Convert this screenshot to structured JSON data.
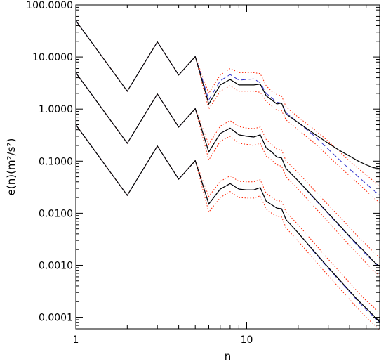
{
  "chart_data": {
    "type": "line",
    "xlabel": "n",
    "ylabel": "e(n)(m²/s²)",
    "xscale": "log",
    "yscale": "log",
    "xlim": [
      1,
      60
    ],
    "ylim": [
      6e-05,
      100
    ],
    "x_ticks": [
      {
        "value": 1,
        "label": "1"
      },
      {
        "value": 10,
        "label": "10"
      }
    ],
    "y_ticks": [
      {
        "value": 100,
        "label": "100.0000"
      },
      {
        "value": 10,
        "label": "10.0000"
      },
      {
        "value": 1,
        "label": "1.0000"
      },
      {
        "value": 0.1,
        "label": "0.1000"
      },
      {
        "value": 0.01,
        "label": "0.0100"
      },
      {
        "value": 0.001,
        "label": "0.0010"
      },
      {
        "value": 0.0001,
        "label": "0.0001"
      }
    ],
    "grid": false,
    "legend": "none",
    "colors": {
      "solid": "#000000",
      "dashed": "#3333cc",
      "dotted": "#ff2200"
    },
    "groups": [
      {
        "solid": [
          [
            1,
            50
          ],
          [
            2,
            2.2
          ],
          [
            3,
            19.5
          ],
          [
            4,
            4.5
          ],
          [
            5,
            10.2
          ],
          [
            6,
            1.25
          ],
          [
            7,
            2.9
          ],
          [
            8,
            3.7
          ],
          [
            9,
            2.9
          ],
          [
            10,
            2.9
          ],
          [
            11,
            2.9
          ],
          [
            12,
            3.0
          ],
          [
            13,
            1.8
          ],
          [
            14,
            1.5
          ],
          [
            15,
            1.25
          ],
          [
            16,
            1.3
          ],
          [
            17,
            0.8
          ],
          [
            20,
            0.55
          ],
          [
            25,
            0.33
          ],
          [
            30,
            0.22
          ],
          [
            35,
            0.16
          ],
          [
            40,
            0.125
          ],
          [
            45,
            0.1
          ],
          [
            50,
            0.085
          ],
          [
            55,
            0.075
          ],
          [
            60,
            0.072
          ]
        ],
        "dashed": [
          [
            1,
            50
          ],
          [
            2,
            2.2
          ],
          [
            3,
            19.5
          ],
          [
            4,
            4.5
          ],
          [
            5,
            10.2
          ],
          [
            6,
            1.5
          ],
          [
            7,
            3.5
          ],
          [
            8,
            4.6
          ],
          [
            9,
            3.6
          ],
          [
            10,
            3.7
          ],
          [
            11,
            3.8
          ],
          [
            12,
            3.2
          ],
          [
            13,
            2.0
          ],
          [
            14,
            1.65
          ],
          [
            15,
            1.35
          ],
          [
            16,
            1.3
          ],
          [
            17,
            0.85
          ],
          [
            20,
            0.55
          ],
          [
            25,
            0.3
          ],
          [
            30,
            0.17
          ],
          [
            35,
            0.105
          ],
          [
            40,
            0.07
          ],
          [
            45,
            0.05
          ],
          [
            50,
            0.037
          ],
          [
            55,
            0.028
          ],
          [
            60,
            0.022
          ]
        ],
        "dotted_upper": [
          [
            1,
            50
          ],
          [
            2,
            2.2
          ],
          [
            3,
            19.5
          ],
          [
            4,
            4.5
          ],
          [
            5,
            10.2
          ],
          [
            6,
            2.0
          ],
          [
            7,
            4.5
          ],
          [
            8,
            6.0
          ],
          [
            9,
            5.0
          ],
          [
            10,
            5.0
          ],
          [
            11,
            5.0
          ],
          [
            12,
            4.8
          ],
          [
            13,
            2.8
          ],
          [
            14,
            2.2
          ],
          [
            15,
            1.9
          ],
          [
            16,
            1.8
          ],
          [
            17,
            1.1
          ],
          [
            20,
            0.7
          ],
          [
            25,
            0.4
          ],
          [
            30,
            0.24
          ],
          [
            35,
            0.15
          ],
          [
            40,
            0.1
          ],
          [
            45,
            0.072
          ],
          [
            50,
            0.054
          ],
          [
            55,
            0.042
          ],
          [
            60,
            0.033
          ]
        ],
        "dotted_lower": [
          [
            1,
            50
          ],
          [
            2,
            2.2
          ],
          [
            3,
            19.5
          ],
          [
            4,
            4.5
          ],
          [
            5,
            10.2
          ],
          [
            6,
            1.0
          ],
          [
            7,
            2.2
          ],
          [
            8,
            2.8
          ],
          [
            9,
            2.2
          ],
          [
            10,
            2.2
          ],
          [
            11,
            2.2
          ],
          [
            12,
            2.1
          ],
          [
            13,
            1.4
          ],
          [
            14,
            1.15
          ],
          [
            15,
            0.95
          ],
          [
            16,
            0.93
          ],
          [
            17,
            0.62
          ],
          [
            20,
            0.4
          ],
          [
            25,
            0.22
          ],
          [
            30,
            0.125
          ],
          [
            35,
            0.078
          ],
          [
            40,
            0.052
          ],
          [
            45,
            0.037
          ],
          [
            50,
            0.027
          ],
          [
            55,
            0.02
          ],
          [
            60,
            0.016
          ]
        ]
      },
      {
        "solid": [
          [
            1,
            5
          ],
          [
            2,
            0.22
          ],
          [
            3,
            1.95
          ],
          [
            4,
            0.45
          ],
          [
            5,
            1.02
          ],
          [
            6,
            0.15
          ],
          [
            7,
            0.34
          ],
          [
            8,
            0.43
          ],
          [
            9,
            0.32
          ],
          [
            10,
            0.3
          ],
          [
            11,
            0.29
          ],
          [
            12,
            0.32
          ],
          [
            13,
            0.18
          ],
          [
            14,
            0.15
          ],
          [
            15,
            0.12
          ],
          [
            16,
            0.115
          ],
          [
            17,
            0.072
          ],
          [
            20,
            0.042
          ],
          [
            25,
            0.019
          ],
          [
            30,
            0.01
          ],
          [
            35,
            0.0058
          ],
          [
            40,
            0.0036
          ],
          [
            45,
            0.0024
          ],
          [
            50,
            0.0017
          ],
          [
            55,
            0.0012
          ],
          [
            60,
            0.00095
          ]
        ],
        "dashed": [
          [
            1,
            5
          ],
          [
            2,
            0.22
          ],
          [
            3,
            1.95
          ],
          [
            4,
            0.45
          ],
          [
            5,
            1.02
          ],
          [
            6,
            0.15
          ],
          [
            7,
            0.34
          ],
          [
            8,
            0.43
          ],
          [
            9,
            0.32
          ],
          [
            10,
            0.3
          ],
          [
            11,
            0.29
          ],
          [
            12,
            0.32
          ],
          [
            13,
            0.18
          ],
          [
            14,
            0.15
          ],
          [
            15,
            0.12
          ],
          [
            16,
            0.115
          ],
          [
            17,
            0.072
          ],
          [
            20,
            0.042
          ],
          [
            25,
            0.0185
          ],
          [
            30,
            0.0098
          ],
          [
            35,
            0.0056
          ],
          [
            40,
            0.0035
          ],
          [
            45,
            0.0023
          ],
          [
            50,
            0.0016
          ],
          [
            55,
            0.0012
          ],
          [
            60,
            0.0009
          ]
        ],
        "dotted_upper": [
          [
            1,
            5
          ],
          [
            2,
            0.22
          ],
          [
            3,
            1.95
          ],
          [
            4,
            0.45
          ],
          [
            5,
            1.02
          ],
          [
            6,
            0.21
          ],
          [
            7,
            0.47
          ],
          [
            8,
            0.6
          ],
          [
            9,
            0.46
          ],
          [
            10,
            0.43
          ],
          [
            11,
            0.42
          ],
          [
            12,
            0.45
          ],
          [
            13,
            0.26
          ],
          [
            14,
            0.21
          ],
          [
            15,
            0.17
          ],
          [
            16,
            0.165
          ],
          [
            17,
            0.1
          ],
          [
            20,
            0.06
          ],
          [
            25,
            0.027
          ],
          [
            30,
            0.0145
          ],
          [
            35,
            0.0085
          ],
          [
            40,
            0.0053
          ],
          [
            45,
            0.0035
          ],
          [
            50,
            0.0025
          ],
          [
            55,
            0.0018
          ],
          [
            60,
            0.0014
          ]
        ],
        "dotted_lower": [
          [
            1,
            5
          ],
          [
            2,
            0.22
          ],
          [
            3,
            1.95
          ],
          [
            4,
            0.45
          ],
          [
            5,
            1.02
          ],
          [
            6,
            0.105
          ],
          [
            7,
            0.24
          ],
          [
            8,
            0.3
          ],
          [
            9,
            0.22
          ],
          [
            10,
            0.21
          ],
          [
            11,
            0.2
          ],
          [
            12,
            0.22
          ],
          [
            13,
            0.125
          ],
          [
            14,
            0.105
          ],
          [
            15,
            0.085
          ],
          [
            16,
            0.08
          ],
          [
            17,
            0.05
          ],
          [
            20,
            0.029
          ],
          [
            25,
            0.013
          ],
          [
            30,
            0.0068
          ],
          [
            35,
            0.0039
          ],
          [
            40,
            0.0024
          ],
          [
            45,
            0.0016
          ],
          [
            50,
            0.0011
          ],
          [
            55,
            0.0008
          ],
          [
            60,
            0.00063
          ]
        ]
      },
      {
        "solid": [
          [
            1,
            0.5
          ],
          [
            2,
            0.022
          ],
          [
            3,
            0.195
          ],
          [
            4,
            0.045
          ],
          [
            5,
            0.102
          ],
          [
            6,
            0.015
          ],
          [
            7,
            0.029
          ],
          [
            8,
            0.037
          ],
          [
            9,
            0.029
          ],
          [
            10,
            0.028
          ],
          [
            11,
            0.028
          ],
          [
            12,
            0.031
          ],
          [
            13,
            0.017
          ],
          [
            14,
            0.0145
          ],
          [
            15,
            0.0125
          ],
          [
            16,
            0.0122
          ],
          [
            17,
            0.0075
          ],
          [
            20,
            0.0042
          ],
          [
            25,
            0.0018
          ],
          [
            30,
            0.00091
          ],
          [
            35,
            0.00052
          ],
          [
            40,
            0.00032
          ],
          [
            45,
            0.00021
          ],
          [
            50,
            0.00015
          ],
          [
            55,
            0.00011
          ],
          [
            60,
            8.2e-05
          ]
        ],
        "dashed": [
          [
            1,
            0.5
          ],
          [
            2,
            0.022
          ],
          [
            3,
            0.195
          ],
          [
            4,
            0.045
          ],
          [
            5,
            0.102
          ],
          [
            6,
            0.015
          ],
          [
            7,
            0.029
          ],
          [
            8,
            0.037
          ],
          [
            9,
            0.029
          ],
          [
            10,
            0.028
          ],
          [
            11,
            0.028
          ],
          [
            12,
            0.031
          ],
          [
            13,
            0.017
          ],
          [
            14,
            0.0145
          ],
          [
            15,
            0.0125
          ],
          [
            16,
            0.0122
          ],
          [
            17,
            0.0075
          ],
          [
            20,
            0.0042
          ],
          [
            25,
            0.00175
          ],
          [
            30,
            0.00088
          ],
          [
            35,
            0.0005
          ],
          [
            40,
            0.00031
          ],
          [
            45,
            0.0002
          ],
          [
            50,
            0.00014
          ],
          [
            55,
            0.000105
          ],
          [
            60,
            8e-05
          ]
        ],
        "dotted_upper": [
          [
            1,
            0.5
          ],
          [
            2,
            0.022
          ],
          [
            3,
            0.195
          ],
          [
            4,
            0.045
          ],
          [
            5,
            0.102
          ],
          [
            6,
            0.021
          ],
          [
            7,
            0.041
          ],
          [
            8,
            0.052
          ],
          [
            9,
            0.041
          ],
          [
            10,
            0.04
          ],
          [
            11,
            0.04
          ],
          [
            12,
            0.044
          ],
          [
            13,
            0.024
          ],
          [
            14,
            0.0205
          ],
          [
            15,
            0.0175
          ],
          [
            16,
            0.017
          ],
          [
            17,
            0.0105
          ],
          [
            20,
            0.006
          ],
          [
            25,
            0.0026
          ],
          [
            30,
            0.0013
          ],
          [
            35,
            0.00075
          ],
          [
            40,
            0.00046
          ],
          [
            45,
            0.0003
          ],
          [
            50,
            0.00021
          ],
          [
            55,
            0.00016
          ],
          [
            60,
            0.00012
          ]
        ],
        "dotted_lower": [
          [
            1,
            0.5
          ],
          [
            2,
            0.022
          ],
          [
            3,
            0.195
          ],
          [
            4,
            0.045
          ],
          [
            5,
            0.102
          ],
          [
            6,
            0.0105
          ],
          [
            7,
            0.02
          ],
          [
            8,
            0.026
          ],
          [
            9,
            0.02
          ],
          [
            10,
            0.0195
          ],
          [
            11,
            0.0195
          ],
          [
            12,
            0.0215
          ],
          [
            13,
            0.012
          ],
          [
            14,
            0.01
          ],
          [
            15,
            0.0087
          ],
          [
            16,
            0.0085
          ],
          [
            17,
            0.0052
          ],
          [
            20,
            0.0029
          ],
          [
            25,
            0.00125
          ],
          [
            30,
            0.00063
          ],
          [
            35,
            0.00036
          ],
          [
            40,
            0.00022
          ],
          [
            45,
            0.000145
          ],
          [
            50,
            0.0001
          ],
          [
            55,
            7.5e-05
          ],
          [
            60,
            5.7e-05
          ]
        ]
      }
    ]
  }
}
